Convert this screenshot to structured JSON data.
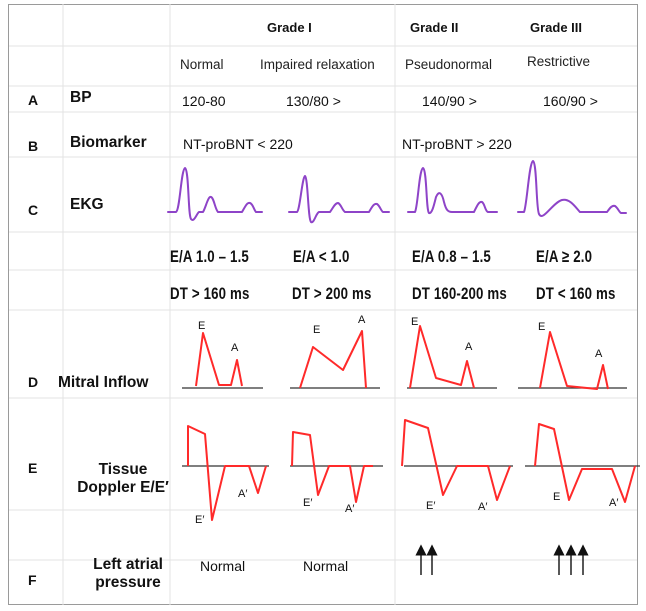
{
  "grades": [
    "Grade I",
    "Grade II",
    "Grade III"
  ],
  "categories": [
    "Normal",
    "Impaired relaxation",
    "Pseudonormal",
    "Restrictive"
  ],
  "rows": {
    "bp": {
      "letter": "A",
      "label": "BP",
      "values": [
        "120-80",
        "130/80 >",
        "140/90 >",
        "160/90 >"
      ]
    },
    "biomarker": {
      "letter": "B",
      "label": "Biomarker",
      "values": [
        "NT-proBNT < 220",
        "NT-proBNT > 220"
      ]
    },
    "ekg": {
      "letter": "C",
      "label": "EKG"
    },
    "ea": [
      "E/A 1.0 – 1.5",
      "E/A < 1.0",
      "E/A 0.8 – 1.5",
      "E/A ≥ 2.0"
    ],
    "dt": [
      "DT > 160 ms",
      "DT > 200 ms",
      "DT 160-200 ms",
      "DT < 160 ms"
    ],
    "mitral": {
      "letter": "D",
      "label": "Mitral Inflow",
      "wave_labels": {
        "e": "E",
        "a": "A"
      }
    },
    "tissue": {
      "letter": "E",
      "label_line1": "Tissue",
      "label_line2": "Doppler E/E′",
      "wave_labels": {
        "e": "E′",
        "e_plain": "E",
        "a": "A′"
      }
    },
    "lap": {
      "letter": "F",
      "label_line1": "Left atrial",
      "label_line2": "pressure",
      "values": [
        "Normal",
        "Normal"
      ],
      "arrows": [
        2,
        3
      ]
    }
  },
  "colors": {
    "ekg": "#8e44c8",
    "doppler": "#ff2a2a",
    "baseline": "#333333",
    "arrow": "#111111"
  }
}
